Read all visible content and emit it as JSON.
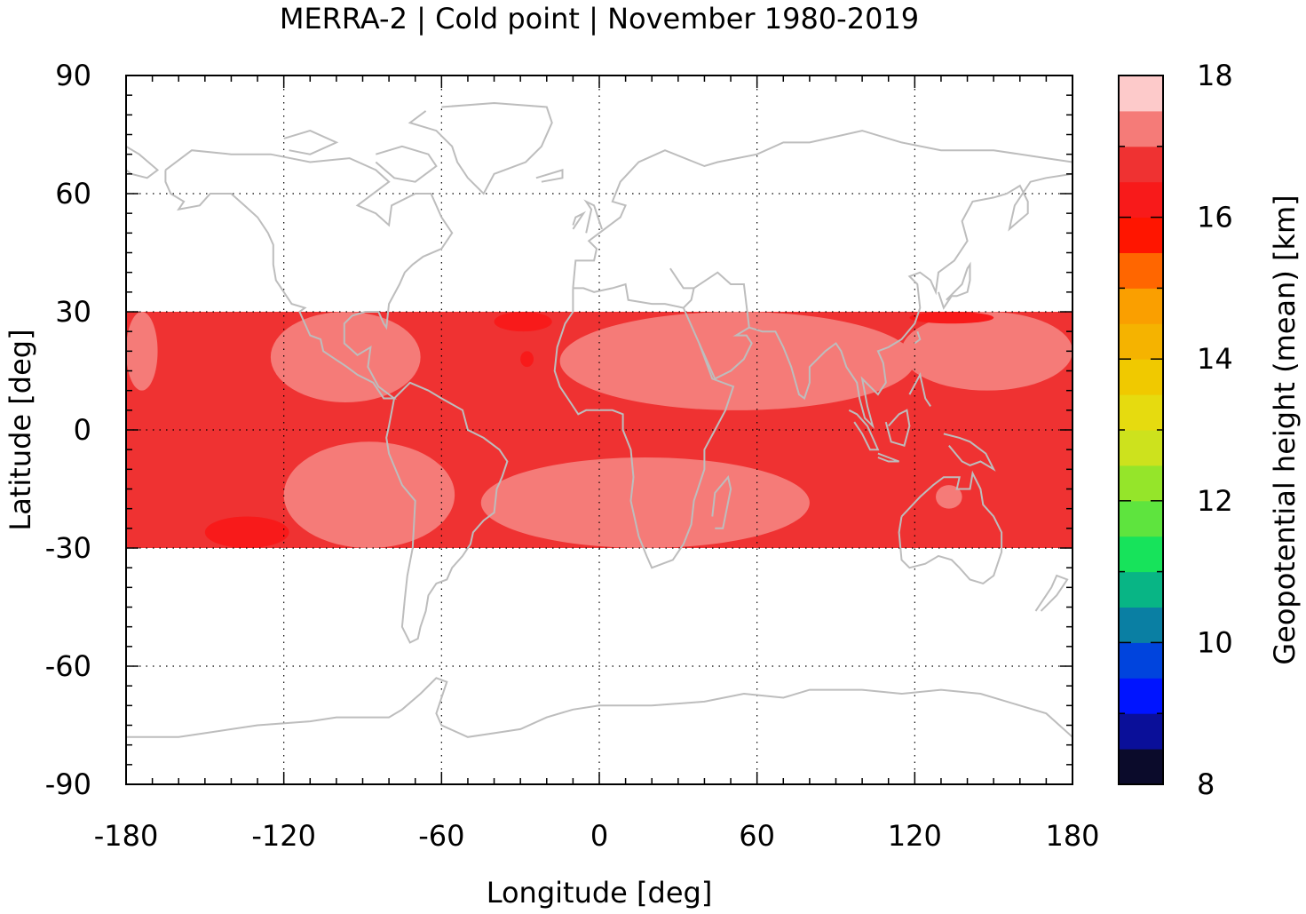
{
  "chart_data": {
    "type": "heatmap",
    "title": "MERRA-2 | Cold point | November 1980-2019",
    "xlabel": "Longitude [deg]",
    "ylabel": "Latitude [deg]",
    "colorbar_label": "Geopotential height (mean) [km]",
    "xlim": [
      -180,
      180
    ],
    "ylim": [
      -90,
      90
    ],
    "x_ticks": [
      -180,
      -120,
      -60,
      0,
      60,
      120,
      180
    ],
    "y_ticks": [
      90,
      60,
      30,
      0,
      -30,
      -60,
      -90
    ],
    "x_tick_labels": [
      "-180",
      "-120",
      "-60",
      "0",
      "60",
      "120",
      "180"
    ],
    "y_tick_labels": [
      "90",
      "60",
      "30",
      "0",
      "-30",
      "-60",
      "-90"
    ],
    "grid": true,
    "data_lat_range": [
      -30,
      30
    ],
    "colorbar": {
      "range": [
        8,
        18
      ],
      "ticks": [
        8,
        10,
        12,
        14,
        16,
        18
      ],
      "tick_labels": [
        "8",
        "10",
        "12",
        "14",
        "16",
        "18"
      ],
      "levels": [
        {
          "from": 8.0,
          "to": 8.5,
          "color": "#0b0b2b"
        },
        {
          "from": 8.5,
          "to": 9.0,
          "color": "#0a0f99"
        },
        {
          "from": 9.0,
          "to": 9.5,
          "color": "#0014ff"
        },
        {
          "from": 9.5,
          "to": 10.0,
          "color": "#0044dd"
        },
        {
          "from": 10.0,
          "to": 10.5,
          "color": "#0a7fa3"
        },
        {
          "from": 10.5,
          "to": 11.0,
          "color": "#08b585"
        },
        {
          "from": 11.0,
          "to": 11.5,
          "color": "#17e35b"
        },
        {
          "from": 11.5,
          "to": 12.0,
          "color": "#5ee43e"
        },
        {
          "from": 12.0,
          "to": 12.5,
          "color": "#95e52a"
        },
        {
          "from": 12.5,
          "to": 13.0,
          "color": "#cde21d"
        },
        {
          "from": 13.0,
          "to": 13.5,
          "color": "#e6db0f"
        },
        {
          "from": 13.5,
          "to": 14.0,
          "color": "#f0c900"
        },
        {
          "from": 14.0,
          "to": 14.5,
          "color": "#f5b300"
        },
        {
          "from": 14.5,
          "to": 15.0,
          "color": "#fa9f00"
        },
        {
          "from": 15.0,
          "to": 15.5,
          "color": "#ff6600"
        },
        {
          "from": 15.5,
          "to": 16.0,
          "color": "#ff1500"
        },
        {
          "from": 16.0,
          "to": 16.5,
          "color": "#f81a1a"
        },
        {
          "from": 16.5,
          "to": 17.0,
          "color": "#ef3232"
        },
        {
          "from": 17.0,
          "to": 17.5,
          "color": "#f57b78"
        },
        {
          "from": 17.5,
          "to": 18.0,
          "color": "#fdcaca"
        }
      ]
    },
    "regions": [
      {
        "level_km": 16.75,
        "color": "#ef3232",
        "lon": [
          -180,
          180
        ],
        "lat": [
          -30,
          30
        ]
      },
      {
        "level_km": 17.25,
        "color": "#f57b78",
        "lon": [
          -180,
          -168
        ],
        "lat": [
          10,
          30
        ]
      },
      {
        "level_km": 17.25,
        "color": "#f57b78",
        "lon": [
          -125,
          -68
        ],
        "lat": [
          7,
          30
        ]
      },
      {
        "level_km": 17.25,
        "color": "#f57b78",
        "lon": [
          -15,
          120
        ],
        "lat": [
          5,
          30
        ]
      },
      {
        "level_km": 17.25,
        "color": "#f57b78",
        "lon": [
          115,
          180
        ],
        "lat": [
          10,
          30
        ]
      },
      {
        "level_km": 17.25,
        "color": "#f57b78",
        "lon": [
          -120,
          -55
        ],
        "lat": [
          -30,
          -3
        ]
      },
      {
        "level_km": 17.25,
        "color": "#f57b78",
        "lon": [
          -45,
          80
        ],
        "lat": [
          -30,
          -7
        ]
      },
      {
        "level_km": 17.25,
        "color": "#f57b78",
        "lon": [
          128,
          138
        ],
        "lat": [
          -20,
          -14
        ]
      },
      {
        "level_km": 16.25,
        "color": "#f81a1a",
        "lon": [
          -150,
          -118
        ],
        "lat": [
          -30,
          -22
        ]
      },
      {
        "level_km": 16.25,
        "color": "#f81a1a",
        "lon": [
          -40,
          -18
        ],
        "lat": [
          25,
          30
        ]
      },
      {
        "level_km": 16.25,
        "color": "#f81a1a",
        "lon": [
          -30,
          -25
        ],
        "lat": [
          16,
          20
        ]
      },
      {
        "level_km": 16.25,
        "color": "#f81a1a",
        "lon": [
          118,
          150
        ],
        "lat": [
          27,
          30
        ]
      }
    ],
    "coastline_color": "#bdbdbd"
  }
}
